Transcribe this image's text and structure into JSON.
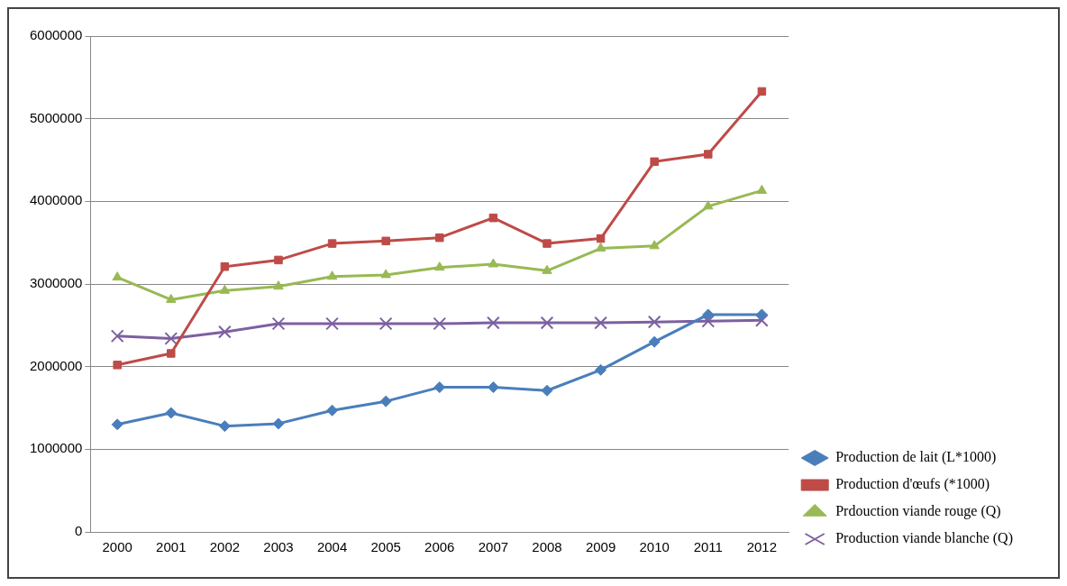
{
  "chart_data": {
    "type": "line",
    "categories": [
      "2000",
      "2001",
      "2002",
      "2003",
      "2004",
      "2005",
      "2006",
      "2007",
      "2008",
      "2009",
      "2010",
      "2011",
      "2012"
    ],
    "series": [
      {
        "name": "Production de lait (L*1000)",
        "color": "#4a7ebb",
        "marker": "diamond",
        "values": [
          1300000,
          1440000,
          1280000,
          1310000,
          1470000,
          1580000,
          1750000,
          1750000,
          1710000,
          1960000,
          2300000,
          2630000,
          2630000
        ]
      },
      {
        "name": "Production d'œufs (*1000)",
        "color": "#be4b48",
        "marker": "square",
        "values": [
          2020000,
          2160000,
          3210000,
          3290000,
          3490000,
          3520000,
          3560000,
          3800000,
          3490000,
          3550000,
          4480000,
          4570000,
          5330000
        ]
      },
      {
        "name": "Prdouction viande rouge (Q)",
        "color": "#98b954",
        "marker": "triangle",
        "values": [
          3080000,
          2810000,
          2920000,
          2970000,
          3090000,
          3110000,
          3200000,
          3240000,
          3160000,
          3430000,
          3460000,
          3940000,
          4130000
        ]
      },
      {
        "name": "Production viande blanche (Q)",
        "color": "#7d60a0",
        "marker": "cross",
        "values": [
          2370000,
          2340000,
          2420000,
          2520000,
          2520000,
          2520000,
          2520000,
          2530000,
          2530000,
          2530000,
          2540000,
          2550000,
          2560000
        ]
      }
    ],
    "ylim": [
      0,
      6000000
    ],
    "yticks": [
      0,
      1000000,
      2000000,
      3000000,
      4000000,
      5000000,
      6000000
    ],
    "grid": "y",
    "legend": "right",
    "line_style": "solid"
  }
}
